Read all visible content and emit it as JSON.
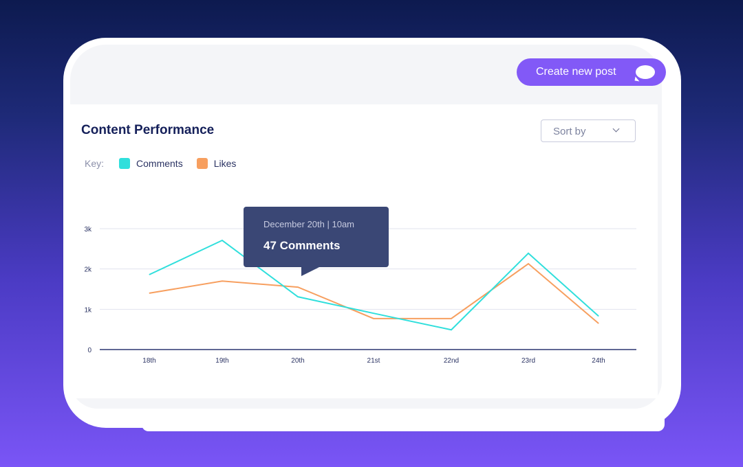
{
  "header": {
    "create_button": "Create new post",
    "create_icon": "speech-bubble-icon"
  },
  "card": {
    "title": "Content Performance",
    "sort_label": "Sort by",
    "key_label": "Key:"
  },
  "tooltip": {
    "date": "December 20th | 10am",
    "value": "47 Comments"
  },
  "colors": {
    "comments": "#30dfdc",
    "likes": "#f79f5f",
    "accent": "#8259f7"
  },
  "chart_data": {
    "type": "line",
    "title": "Content Performance",
    "x": [
      "18th",
      "19th",
      "20th",
      "21st",
      "22nd",
      "23rd",
      "24th"
    ],
    "yticks": [
      "0",
      "1k",
      "2k",
      "3k"
    ],
    "ylim": [
      0,
      3000
    ],
    "series": [
      {
        "name": "Comments",
        "values": [
          1860,
          2710,
          1310,
          900,
          490,
          2390,
          830
        ]
      },
      {
        "name": "Likes",
        "values": [
          1400,
          1700,
          1550,
          770,
          770,
          2130,
          650
        ]
      }
    ],
    "grid": true,
    "legend": "top-left"
  }
}
